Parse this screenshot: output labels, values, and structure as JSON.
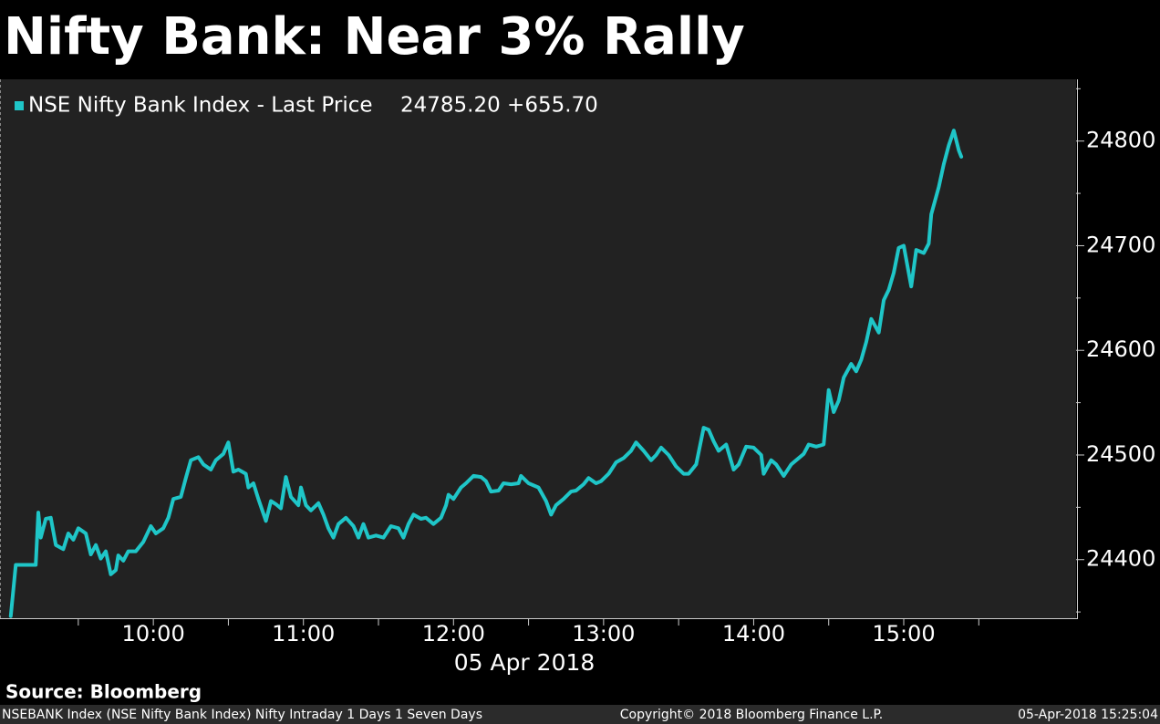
{
  "chart_data": {
    "type": "line",
    "title": "Nifty Bank: Near 3% Rally",
    "legend_text": "24785.20 +655.70",
    "xlabel": "05 Apr 2018",
    "source": "Source: Bloomberg",
    "footer_left": "NSEBANK Index (NSE Nifty Bank Index) Nifty Intraday 1 Days 1 Seven Days",
    "footer_center": "Copyright© 2018 Bloomberg Finance L.P.",
    "footer_right": "05-Apr-2018 15:25:04",
    "xlim": [
      538.7,
      968.9
    ],
    "xticks": [
      {
        "value": 600,
        "label": "10:00"
      },
      {
        "value": 660,
        "label": "11:00"
      },
      {
        "value": 720,
        "label": "12:00"
      },
      {
        "value": 780,
        "label": "13:00"
      },
      {
        "value": 840,
        "label": "14:00"
      },
      {
        "value": 900,
        "label": "15:00"
      }
    ],
    "xminorticks": [
      570,
      630,
      690,
      750,
      810,
      870,
      930
    ],
    "ylim": [
      24344,
      24859
    ],
    "yticks": [
      24400,
      24500,
      24600,
      24700,
      24800
    ],
    "yminorticks": [
      24350,
      24450,
      24550,
      24650,
      24750,
      24850
    ],
    "y_axis_side": "right",
    "grid": false,
    "x": [
      543,
      545,
      553,
      554,
      555,
      557,
      559,
      561,
      564,
      566,
      568,
      570,
      573,
      575,
      577,
      579,
      581,
      583,
      585,
      586,
      588,
      590,
      593,
      596,
      599,
      601,
      604,
      606,
      608,
      611,
      613,
      615,
      618,
      620,
      623,
      625,
      628,
      630,
      632,
      634,
      637,
      638,
      640,
      642,
      645,
      647,
      649,
      651,
      653,
      655,
      658,
      659,
      661,
      663,
      666,
      668,
      670,
      672,
      674,
      677,
      680,
      682,
      684,
      686,
      689,
      692,
      695,
      698,
      700,
      702,
      704,
      707,
      709,
      712,
      715,
      717,
      718,
      720,
      723,
      725,
      728,
      731,
      733,
      735,
      738,
      740,
      743,
      746,
      747,
      750,
      754,
      757,
      759,
      761,
      764,
      767,
      769,
      772,
      774,
      777,
      779,
      782,
      785,
      788,
      791,
      793,
      796,
      799,
      801,
      803,
      806,
      809,
      812,
      814,
      817,
      820,
      822,
      824,
      826,
      829,
      832,
      834,
      837,
      840,
      843,
      844,
      847,
      849,
      852,
      855,
      857,
      860,
      862,
      865,
      868,
      870,
      872,
      874,
      876,
      879,
      881,
      883,
      885,
      887,
      890,
      892,
      894,
      896,
      898,
      900,
      903,
      905,
      908,
      910,
      911,
      914,
      916,
      918,
      920,
      922,
      923
    ],
    "series": [
      {
        "name": "NSE Nifty Bank Index - Last Price",
        "color": "#1fc6c8",
        "values": [
          24346,
          24395,
          24395,
          24445,
          24421,
          24439,
          24440,
          24414,
          24410,
          24425,
          24419,
          24430,
          24425,
          24405,
          24414,
          24401,
          24408,
          24386,
          24390,
          24404,
          24399,
          24408,
          24408,
          24417,
          24432,
          24425,
          24430,
          24440,
          24458,
          24460,
          24478,
          24495,
          24498,
          24491,
          24486,
          24495,
          24501,
          24512,
          24484,
          24486,
          24482,
          24469,
          24473,
          24458,
          24437,
          24456,
          24453,
          24449,
          24479,
          24460,
          24452,
          24469,
          24452,
          24447,
          24454,
          24443,
          24430,
          24421,
          24434,
          24440,
          24432,
          24421,
          24434,
          24421,
          24423,
          24421,
          24432,
          24430,
          24421,
          24434,
          24443,
          24439,
          24440,
          24434,
          24440,
          24452,
          24462,
          24458,
          24469,
          24473,
          24480,
          24479,
          24475,
          24465,
          24466,
          24473,
          24472,
          24473,
          24480,
          24473,
          24469,
          24456,
          24443,
          24452,
          24458,
          24465,
          24466,
          24472,
          24478,
          24473,
          24475,
          24482,
          24493,
          24497,
          24504,
          24512,
          24504,
          24495,
          24500,
          24507,
          24500,
          24489,
          24482,
          24482,
          24491,
          24526,
          24524,
          24513,
          24504,
          24510,
          24486,
          24491,
          24508,
          24507,
          24500,
          24482,
          24495,
          24491,
          24480,
          24491,
          24495,
          24501,
          24510,
          24508,
          24510,
          24562,
          24541,
          24552,
          24574,
          24587,
          24580,
          24591,
          24608,
          24630,
          24617,
          24648,
          24658,
          24674,
          24698,
          24700,
          24661,
          24696,
          24693,
          24702,
          24730,
          24756,
          24778,
          24796,
          24810,
          24791,
          24785
        ]
      }
    ]
  }
}
